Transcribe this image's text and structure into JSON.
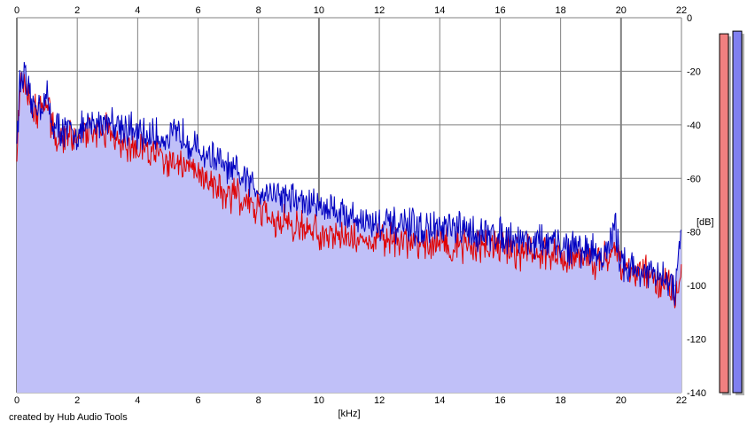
{
  "credit": "created by Hub Audio Tools",
  "chart_data": {
    "type": "area",
    "xlabel": "[kHz]",
    "ylabel": "[dB]",
    "xlim": [
      0,
      22
    ],
    "ylim": [
      -140,
      0
    ],
    "x_ticks": [
      0,
      2,
      4,
      6,
      8,
      10,
      12,
      14,
      16,
      18,
      20,
      22
    ],
    "y_ticks": [
      0,
      -20,
      -40,
      -60,
      -80,
      -100,
      -120,
      -140
    ],
    "grid": true,
    "colors": {
      "fill": "#c0c0f8",
      "red": "#e00000",
      "blue": "#0000c0",
      "grid": "#808080"
    },
    "series": [
      {
        "color": "#0000c0",
        "x": [
          0,
          0.1,
          0.2,
          0.25,
          0.3,
          0.5,
          0.8,
          1.0,
          1.2,
          1.5,
          2.0,
          2.5,
          3.0,
          3.5,
          4.0,
          4.5,
          5.0,
          5.5,
          6.0,
          6.5,
          7.0,
          7.5,
          8.0,
          8.5,
          9.0,
          9.5,
          10.0,
          10.5,
          11.0,
          11.5,
          12.0,
          12.5,
          13.0,
          13.5,
          14.0,
          14.5,
          15.0,
          15.5,
          16.0,
          16.5,
          17.0,
          17.5,
          18.0,
          18.5,
          19.0,
          19.5,
          19.8,
          20.0,
          20.5,
          21.0,
          21.5,
          21.8,
          22.0
        ],
        "y": [
          -45,
          -25,
          -22,
          -18,
          -26,
          -33,
          -32,
          -30,
          -40,
          -42,
          -43,
          -40,
          -38,
          -40,
          -44,
          -44,
          -45,
          -43,
          -50,
          -52,
          -57,
          -60,
          -64,
          -65,
          -67,
          -69,
          -70,
          -71,
          -74,
          -76,
          -77,
          -78,
          -78,
          -79,
          -79,
          -79,
          -80,
          -81,
          -81,
          -82,
          -83,
          -84,
          -85,
          -86,
          -87,
          -89,
          -78,
          -91,
          -94,
          -96,
          -98,
          -102,
          -80
        ]
      },
      {
        "color": "#e00000",
        "x": [
          0,
          0.1,
          0.2,
          0.25,
          0.3,
          0.5,
          0.8,
          1.0,
          1.2,
          1.5,
          2.0,
          2.5,
          3.0,
          3.5,
          4.0,
          4.5,
          5.0,
          5.5,
          6.0,
          6.5,
          7.0,
          7.5,
          8.0,
          8.5,
          9.0,
          9.5,
          10.0,
          10.5,
          11.0,
          11.5,
          12.0,
          12.5,
          13.0,
          13.5,
          14.0,
          14.5,
          15.0,
          15.5,
          16.0,
          16.5,
          17.0,
          17.5,
          18.0,
          18.5,
          19.0,
          19.5,
          19.8,
          20.0,
          20.5,
          21.0,
          21.5,
          21.8,
          22.0
        ],
        "y": [
          -47,
          -27,
          -24,
          -20,
          -28,
          -35,
          -34,
          -32,
          -42,
          -44,
          -45,
          -42,
          -42,
          -46,
          -50,
          -50,
          -52,
          -55,
          -58,
          -62,
          -65,
          -69,
          -72,
          -75,
          -78,
          -79,
          -80,
          -81,
          -82,
          -83,
          -83,
          -84,
          -84,
          -84,
          -85,
          -85,
          -85,
          -86,
          -86,
          -87,
          -88,
          -88,
          -89,
          -89,
          -90,
          -91,
          -85,
          -93,
          -95,
          -97,
          -99,
          -104,
          -95
        ]
      }
    ],
    "level_meters": [
      {
        "color": "#f08080",
        "value_db": -6
      },
      {
        "color": "#8080f0",
        "value_db": -5
      }
    ]
  }
}
